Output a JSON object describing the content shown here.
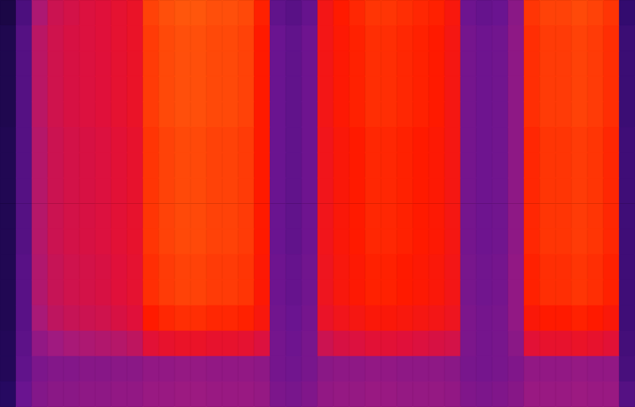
{
  "chart_data": {
    "type": "heatmap",
    "tick_labels": false,
    "grid": false,
    "color_range": [
      0,
      100
    ],
    "cells": [
      [
        12,
        28,
        53,
        60,
        62,
        64,
        65,
        67,
        69,
        84,
        86,
        87,
        87,
        86,
        86,
        85,
        79,
        33,
        31,
        34,
        73,
        78,
        80,
        82,
        82,
        81,
        80,
        79,
        75,
        36,
        34,
        35,
        44,
        82,
        84,
        84,
        85,
        84,
        82,
        22
      ],
      [
        14,
        30,
        56,
        61,
        63,
        64,
        65,
        67,
        69,
        83,
        85,
        86,
        86,
        85,
        85,
        84,
        78,
        35,
        33,
        36,
        73,
        77,
        79,
        81,
        81,
        80,
        79,
        78,
        74,
        38,
        36,
        37,
        45,
        81,
        83,
        83,
        84,
        83,
        81,
        24
      ],
      [
        14,
        30,
        56,
        61,
        63,
        64,
        65,
        67,
        69,
        83,
        85,
        86,
        86,
        85,
        85,
        84,
        78,
        35,
        33,
        36,
        73,
        77,
        79,
        81,
        81,
        80,
        79,
        78,
        74,
        38,
        36,
        37,
        45,
        81,
        83,
        83,
        84,
        83,
        81,
        24
      ],
      [
        14,
        30,
        56,
        61,
        63,
        64,
        65,
        67,
        69,
        83,
        85,
        86,
        86,
        85,
        85,
        84,
        78,
        35,
        33,
        36,
        73,
        77,
        79,
        81,
        81,
        80,
        79,
        78,
        74,
        38,
        36,
        37,
        45,
        81,
        83,
        83,
        84,
        83,
        81,
        24
      ],
      [
        14,
        30,
        56,
        61,
        63,
        64,
        65,
        67,
        69,
        83,
        85,
        86,
        86,
        85,
        85,
        84,
        78,
        35,
        33,
        36,
        73,
        77,
        79,
        81,
        81,
        80,
        79,
        78,
        74,
        38,
        36,
        37,
        45,
        81,
        83,
        83,
        84,
        83,
        81,
        24
      ],
      [
        15,
        30,
        55,
        60,
        62,
        63,
        64,
        66,
        68,
        82,
        84,
        85,
        85,
        84,
        84,
        83,
        78,
        35,
        33,
        36,
        72,
        76,
        78,
        80,
        80,
        79,
        78,
        77,
        74,
        38,
        36,
        37,
        45,
        80,
        82,
        82,
        83,
        82,
        80,
        25
      ],
      [
        15,
        30,
        55,
        60,
        62,
        63,
        64,
        66,
        68,
        82,
        84,
        85,
        85,
        84,
        84,
        83,
        78,
        35,
        33,
        36,
        72,
        76,
        78,
        80,
        80,
        79,
        78,
        77,
        74,
        38,
        36,
        37,
        45,
        80,
        82,
        82,
        83,
        82,
        80,
        25
      ],
      [
        15,
        30,
        55,
        60,
        62,
        63,
        64,
        66,
        68,
        82,
        84,
        85,
        85,
        84,
        84,
        83,
        78,
        35,
        33,
        36,
        72,
        76,
        78,
        80,
        80,
        79,
        78,
        77,
        74,
        38,
        36,
        37,
        45,
        80,
        82,
        82,
        83,
        82,
        80,
        25
      ],
      [
        15,
        30,
        55,
        60,
        62,
        63,
        64,
        66,
        68,
        82,
        84,
        85,
        85,
        84,
        84,
        83,
        78,
        35,
        33,
        36,
        72,
        76,
        78,
        80,
        80,
        79,
        78,
        77,
        74,
        38,
        36,
        37,
        45,
        80,
        82,
        82,
        83,
        82,
        80,
        25
      ],
      [
        15,
        30,
        55,
        60,
        62,
        63,
        64,
        66,
        68,
        82,
        84,
        85,
        85,
        84,
        84,
        83,
        78,
        35,
        33,
        36,
        72,
        76,
        78,
        80,
        80,
        79,
        78,
        77,
        74,
        38,
        36,
        37,
        45,
        80,
        82,
        82,
        83,
        82,
        80,
        25
      ],
      [
        15,
        31,
        54,
        59,
        61,
        62,
        63,
        65,
        67,
        81,
        83,
        84,
        84,
        83,
        83,
        82,
        77,
        36,
        34,
        37,
        71,
        75,
        77,
        79,
        79,
        78,
        77,
        76,
        73,
        39,
        37,
        38,
        46,
        79,
        81,
        81,
        82,
        81,
        79,
        25
      ],
      [
        15,
        31,
        54,
        59,
        61,
        62,
        63,
        65,
        67,
        81,
        83,
        84,
        84,
        83,
        83,
        82,
        77,
        36,
        34,
        37,
        71,
        75,
        77,
        79,
        79,
        78,
        77,
        76,
        73,
        39,
        37,
        38,
        46,
        79,
        81,
        81,
        82,
        81,
        79,
        25
      ],
      [
        15,
        31,
        52,
        57,
        59,
        60,
        61,
        63,
        65,
        78,
        80,
        81,
        81,
        80,
        80,
        79,
        75,
        37,
        35,
        38,
        69,
        72,
        74,
        76,
        76,
        75,
        74,
        73,
        71,
        40,
        38,
        39,
        46,
        76,
        78,
        78,
        79,
        78,
        76,
        25
      ],
      [
        16,
        32,
        46,
        50,
        52,
        53,
        54,
        55,
        57,
        66,
        68,
        69,
        69,
        68,
        68,
        67,
        64,
        38,
        36,
        39,
        60,
        63,
        64,
        66,
        66,
        65,
        64,
        63,
        62,
        40,
        38,
        39,
        44,
        66,
        68,
        68,
        69,
        68,
        66,
        26
      ],
      [
        16,
        33,
        40,
        42,
        42,
        43,
        43,
        44,
        44,
        46,
        46,
        47,
        47,
        46,
        46,
        46,
        45,
        38,
        37,
        39,
        44,
        45,
        45,
        46,
        46,
        45,
        45,
        45,
        44,
        39,
        38,
        39,
        41,
        46,
        46,
        46,
        47,
        46,
        46,
        27
      ],
      [
        18,
        35,
        42,
        44,
        44,
        45,
        45,
        46,
        46,
        48,
        48,
        49,
        49,
        48,
        48,
        48,
        47,
        40,
        39,
        41,
        46,
        47,
        47,
        48,
        48,
        47,
        47,
        47,
        46,
        41,
        40,
        41,
        43,
        48,
        48,
        48,
        49,
        48,
        48,
        30
      ]
    ]
  }
}
